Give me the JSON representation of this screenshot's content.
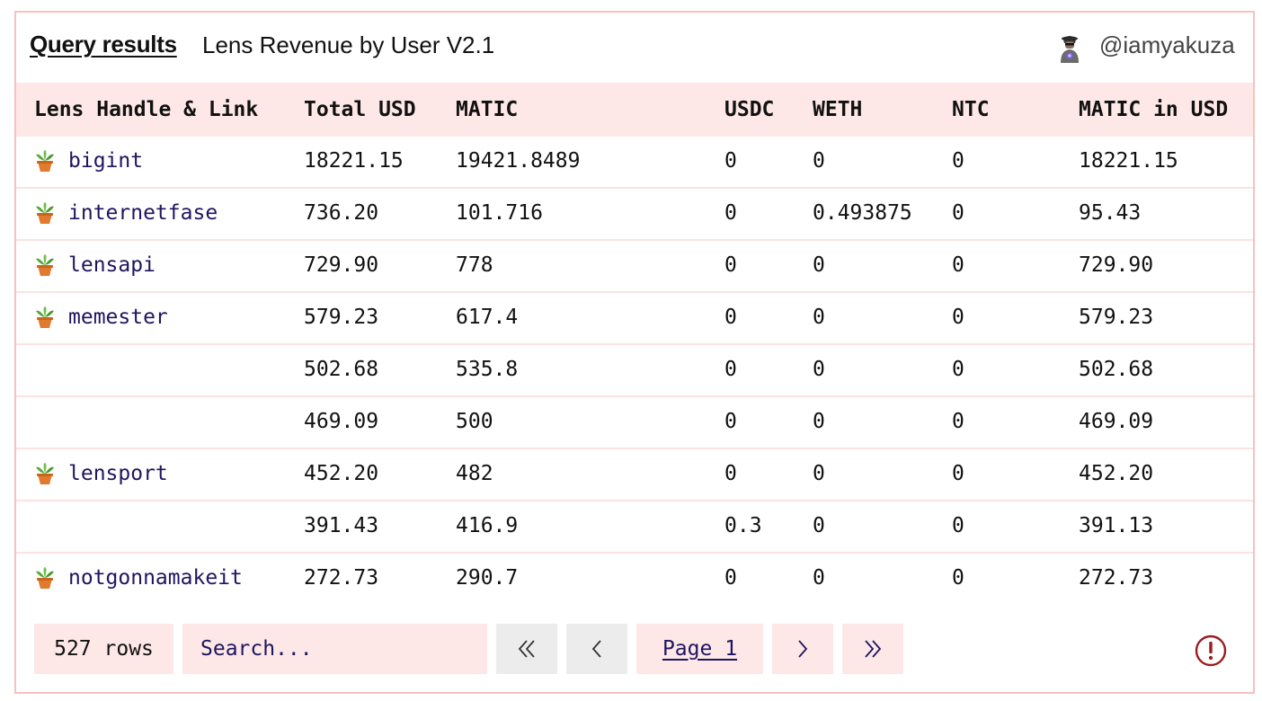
{
  "header": {
    "title": "Query results",
    "query_name": "Lens Revenue by User V2.1",
    "username": "@iamyakuza"
  },
  "table": {
    "columns": [
      "Lens Handle & Link",
      "Total USD",
      "MATIC",
      "USDC",
      "WETH",
      "NTC",
      "MATIC in USD"
    ],
    "rows": [
      {
        "handle": "bigint",
        "total_usd": "18221.15",
        "matic": "19421.8489",
        "usdc": "0",
        "weth": "0",
        "ntc": "0",
        "matic_usd": "18221.15"
      },
      {
        "handle": "internetfase",
        "total_usd": "736.20",
        "matic": "101.716",
        "usdc": "0",
        "weth": "0.493875",
        "ntc": "0",
        "matic_usd": "95.43"
      },
      {
        "handle": "lensapi",
        "total_usd": "729.90",
        "matic": "778",
        "usdc": "0",
        "weth": "0",
        "ntc": "0",
        "matic_usd": "729.90"
      },
      {
        "handle": "memester",
        "total_usd": "579.23",
        "matic": "617.4",
        "usdc": "0",
        "weth": "0",
        "ntc": "0",
        "matic_usd": "579.23"
      },
      {
        "handle": "",
        "total_usd": "502.68",
        "matic": "535.8",
        "usdc": "0",
        "weth": "0",
        "ntc": "0",
        "matic_usd": "502.68"
      },
      {
        "handle": "",
        "total_usd": "469.09",
        "matic": "500",
        "usdc": "0",
        "weth": "0",
        "ntc": "0",
        "matic_usd": "469.09"
      },
      {
        "handle": "lensport",
        "total_usd": "452.20",
        "matic": "482",
        "usdc": "0",
        "weth": "0",
        "ntc": "0",
        "matic_usd": "452.20"
      },
      {
        "handle": "",
        "total_usd": "391.43",
        "matic": "416.9",
        "usdc": "0.3",
        "weth": "0",
        "ntc": "0",
        "matic_usd": "391.13"
      },
      {
        "handle": "notgonnamakeit",
        "total_usd": "272.73",
        "matic": "290.7",
        "usdc": "0",
        "weth": "0",
        "ntc": "0",
        "matic_usd": "272.73"
      }
    ]
  },
  "footer": {
    "rows_count": "527 rows",
    "search_placeholder": "Search...",
    "page_label": "Page 1"
  },
  "icons": {
    "handle_icon": "potted-plant-icon",
    "first": "double-chevron-left-icon",
    "prev": "chevron-left-icon",
    "next": "chevron-right-icon",
    "last": "double-chevron-right-icon",
    "alert": "exclamation-circle-icon"
  },
  "colors": {
    "border": "#f5c2bd",
    "header_bg": "#fde8e7",
    "link": "#1f1560",
    "alert": "#9b1c1c"
  }
}
